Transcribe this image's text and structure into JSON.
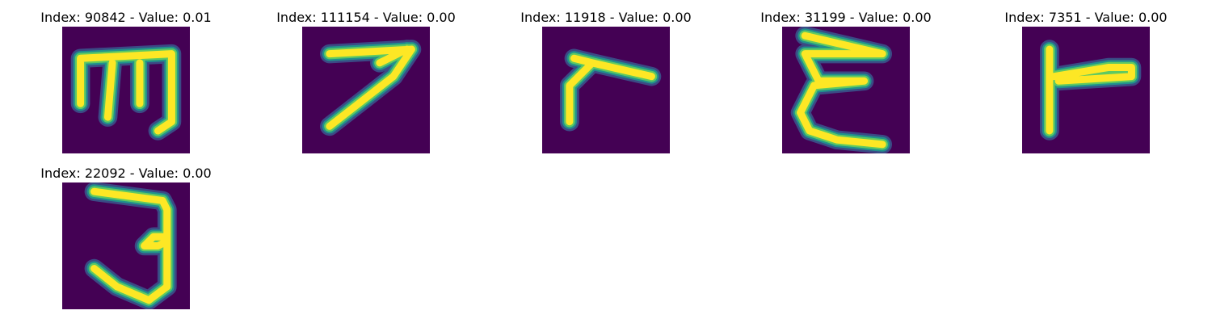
{
  "figure": {
    "panels": [
      {
        "title": "Index: 90842 - Value: 0.01"
      },
      {
        "title": "Index: 111154 - Value: 0.00"
      },
      {
        "title": "Index: 11918 - Value: 0.00"
      },
      {
        "title": "Index: 31199 - Value: 0.00"
      },
      {
        "title": "Index: 7351 - Value: 0.00"
      },
      {
        "title": "Index: 22092 - Value: 0.00"
      }
    ]
  },
  "colors": {
    "background": "#440154",
    "stroke_core": "#fde725",
    "stroke_mid": "#5ec962",
    "stroke_edge": "#21918c",
    "stroke_halo": "#3b528b"
  }
}
